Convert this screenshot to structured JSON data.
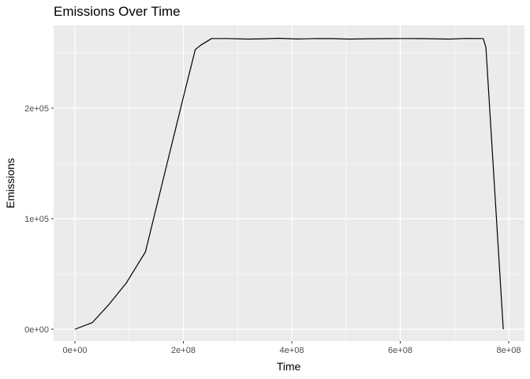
{
  "chart_data": {
    "type": "line",
    "title": "Emissions Over Time",
    "xlabel": "Time",
    "ylabel": "Emissions",
    "xlim": [
      -40000000,
      820000000
    ],
    "ylim": [
      -13000000,
      276000
    ],
    "x_ticks": [
      {
        "value": 0,
        "label": "0e+00"
      },
      {
        "value": 200000000,
        "label": "2e+08"
      },
      {
        "value": 400000000,
        "label": "4e+08"
      },
      {
        "value": 600000000,
        "label": "6e+08"
      },
      {
        "value": 800000000,
        "label": "8e+08"
      }
    ],
    "y_ticks": [
      {
        "value": 0,
        "label": "0e+00"
      },
      {
        "value": 100000,
        "label": "1e+05"
      },
      {
        "value": 200000,
        "label": "2e+05"
      }
    ],
    "grid": true,
    "colors": {
      "panel": "#ebebeb",
      "grid": "#ffffff",
      "line": "#000000"
    },
    "series": [
      {
        "values": [
          {
            "x": 0,
            "y": 0
          },
          {
            "x": 32000000,
            "y": 6000
          },
          {
            "x": 62000000,
            "y": 22000
          },
          {
            "x": 95000000,
            "y": 42000
          },
          {
            "x": 120000000,
            "y": 62000
          },
          {
            "x": 130000000,
            "y": 70000
          },
          {
            "x": 175000000,
            "y": 160000
          },
          {
            "x": 200000000,
            "y": 210000
          },
          {
            "x": 222000000,
            "y": 253000
          },
          {
            "x": 232000000,
            "y": 257000
          },
          {
            "x": 252000000,
            "y": 263000
          },
          {
            "x": 280000000,
            "y": 263000
          },
          {
            "x": 320000000,
            "y": 262500
          },
          {
            "x": 350000000,
            "y": 262800
          },
          {
            "x": 375000000,
            "y": 263200
          },
          {
            "x": 410000000,
            "y": 262600
          },
          {
            "x": 445000000,
            "y": 263000
          },
          {
            "x": 475000000,
            "y": 262900
          },
          {
            "x": 505000000,
            "y": 262500
          },
          {
            "x": 540000000,
            "y": 262800
          },
          {
            "x": 575000000,
            "y": 262900
          },
          {
            "x": 610000000,
            "y": 263000
          },
          {
            "x": 640000000,
            "y": 262900
          },
          {
            "x": 690000000,
            "y": 262500
          },
          {
            "x": 720000000,
            "y": 263100
          },
          {
            "x": 753000000,
            "y": 263000
          },
          {
            "x": 758000000,
            "y": 255000
          },
          {
            "x": 790000000,
            "y": 0
          }
        ]
      }
    ]
  }
}
